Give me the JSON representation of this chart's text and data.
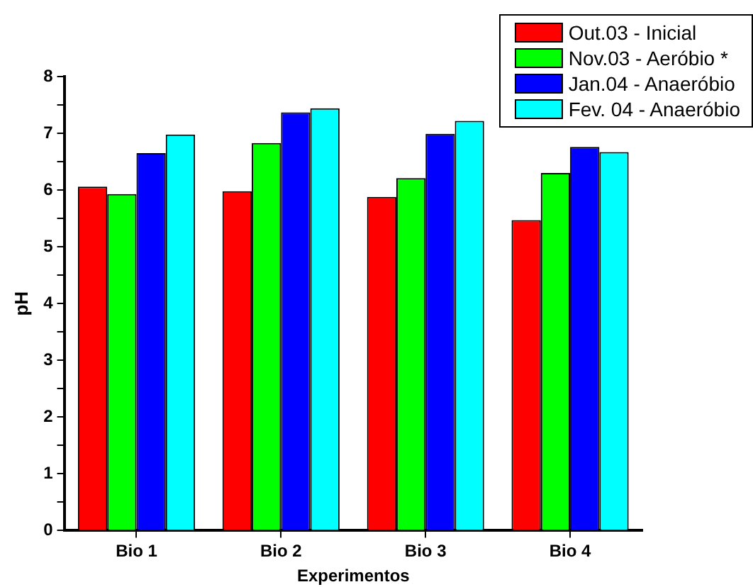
{
  "chart_data": {
    "type": "bar",
    "xlabel": "Experimentos",
    "ylabel": "pH",
    "categories": [
      "Bio 1",
      "Bio 2",
      "Bio 3",
      "Bio 4"
    ],
    "series": [
      {
        "name": "Out.03 - Inicial",
        "color": "#ff0000",
        "values": [
          6.06,
          5.98,
          5.88,
          5.47
        ]
      },
      {
        "name": "Nov.03 - Aeróbio *",
        "color": "#00ff00",
        "values": [
          5.93,
          6.83,
          6.21,
          6.3
        ]
      },
      {
        "name": "Jan.04 - Anaeróbio",
        "color": "#0000ff",
        "values": [
          6.65,
          7.37,
          6.99,
          6.76
        ]
      },
      {
        "name": "Fev. 04 - Anaeróbio",
        "color": "#00ffff",
        "values": [
          6.98,
          7.44,
          7.22,
          6.67
        ]
      }
    ],
    "ylim": [
      0,
      8
    ],
    "yticks": [
      0,
      {
        "value": 0.5,
        "label": null
      },
      1,
      {
        "value": 1.5,
        "label": null
      },
      2,
      {
        "value": 2.5,
        "label": null
      },
      3,
      {
        "value": 3.5,
        "label": null
      },
      4,
      {
        "value": 4.5,
        "label": null
      },
      5,
      {
        "value": 5.5,
        "label": null
      },
      6,
      {
        "value": 6.5,
        "label": null
      },
      7,
      {
        "value": 7.5,
        "label": null
      },
      8
    ],
    "grid": false,
    "legend": "top right"
  }
}
